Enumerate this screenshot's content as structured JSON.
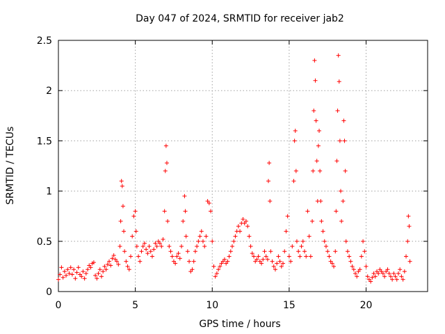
{
  "chart_data": {
    "type": "scatter",
    "title": "Day 047 of 2024, SRMTID for receiver jab2",
    "xlabel": "GPS time / hours",
    "ylabel": "SRMTID / TECUs",
    "xlim": [
      0,
      24
    ],
    "ylim": [
      0,
      2.5
    ],
    "xticks": [
      0,
      5,
      10,
      15,
      20
    ],
    "xtick_labels": [
      "0",
      "5",
      "10",
      "15",
      "20"
    ],
    "yticks": [
      0,
      0.5,
      1,
      1.5,
      2,
      2.5
    ],
    "ytick_labels": [
      "0",
      "0.5",
      "1",
      "1.5",
      "2",
      "2.5"
    ],
    "grid": true,
    "marker": "+",
    "color": "#ff0000",
    "series": [
      {
        "name": "SRMTID",
        "points": [
          [
            0.0,
            0.12
          ],
          [
            0.1,
            0.17
          ],
          [
            0.2,
            0.24
          ],
          [
            0.3,
            0.14
          ],
          [
            0.4,
            0.2
          ],
          [
            0.5,
            0.16
          ],
          [
            0.6,
            0.22
          ],
          [
            0.7,
            0.18
          ],
          [
            0.8,
            0.24
          ],
          [
            0.9,
            0.17
          ],
          [
            1.0,
            0.22
          ],
          [
            1.1,
            0.13
          ],
          [
            1.2,
            0.19
          ],
          [
            1.3,
            0.24
          ],
          [
            1.4,
            0.17
          ],
          [
            1.5,
            0.15
          ],
          [
            1.6,
            0.2
          ],
          [
            1.7,
            0.13
          ],
          [
            1.8,
            0.18
          ],
          [
            1.9,
            0.22
          ],
          [
            2.0,
            0.26
          ],
          [
            2.1,
            0.24
          ],
          [
            2.2,
            0.28
          ],
          [
            2.3,
            0.29
          ],
          [
            2.4,
            0.16
          ],
          [
            2.5,
            0.13
          ],
          [
            2.6,
            0.18
          ],
          [
            2.7,
            0.22
          ],
          [
            2.8,
            0.15
          ],
          [
            2.9,
            0.2
          ],
          [
            3.0,
            0.25
          ],
          [
            3.1,
            0.22
          ],
          [
            3.2,
            0.27
          ],
          [
            3.3,
            0.3
          ],
          [
            3.4,
            0.26
          ],
          [
            3.5,
            0.33
          ],
          [
            3.6,
            0.36
          ],
          [
            3.7,
            0.32
          ],
          [
            3.8,
            0.3
          ],
          [
            3.9,
            0.27
          ],
          [
            4.0,
            0.45
          ],
          [
            4.05,
            0.7
          ],
          [
            4.1,
            1.1
          ],
          [
            4.15,
            1.05
          ],
          [
            4.2,
            0.85
          ],
          [
            4.25,
            0.6
          ],
          [
            4.3,
            0.4
          ],
          [
            4.4,
            0.3
          ],
          [
            4.5,
            0.25
          ],
          [
            4.6,
            0.22
          ],
          [
            4.7,
            0.35
          ],
          [
            4.8,
            0.55
          ],
          [
            4.9,
            0.75
          ],
          [
            5.0,
            0.8
          ],
          [
            5.05,
            0.6
          ],
          [
            5.1,
            0.45
          ],
          [
            5.2,
            0.35
          ],
          [
            5.3,
            0.3
          ],
          [
            5.4,
            0.4
          ],
          [
            5.5,
            0.45
          ],
          [
            5.6,
            0.48
          ],
          [
            5.7,
            0.42
          ],
          [
            5.8,
            0.38
          ],
          [
            5.9,
            0.45
          ],
          [
            6.0,
            0.4
          ],
          [
            6.1,
            0.35
          ],
          [
            6.2,
            0.42
          ],
          [
            6.3,
            0.48
          ],
          [
            6.4,
            0.45
          ],
          [
            6.5,
            0.5
          ],
          [
            6.6,
            0.48
          ],
          [
            6.7,
            0.45
          ],
          [
            6.8,
            0.52
          ],
          [
            6.9,
            0.8
          ],
          [
            6.95,
            1.2
          ],
          [
            7.0,
            1.45
          ],
          [
            7.05,
            1.28
          ],
          [
            7.1,
            0.7
          ],
          [
            7.2,
            0.45
          ],
          [
            7.3,
            0.4
          ],
          [
            7.4,
            0.35
          ],
          [
            7.5,
            0.3
          ],
          [
            7.6,
            0.28
          ],
          [
            7.7,
            0.35
          ],
          [
            7.8,
            0.38
          ],
          [
            7.9,
            0.33
          ],
          [
            8.0,
            0.45
          ],
          [
            8.1,
            0.7
          ],
          [
            8.2,
            0.95
          ],
          [
            8.25,
            0.8
          ],
          [
            8.3,
            0.55
          ],
          [
            8.4,
            0.4
          ],
          [
            8.5,
            0.3
          ],
          [
            8.6,
            0.2
          ],
          [
            8.7,
            0.22
          ],
          [
            8.8,
            0.3
          ],
          [
            8.9,
            0.4
          ],
          [
            9.0,
            0.45
          ],
          [
            9.1,
            0.5
          ],
          [
            9.2,
            0.55
          ],
          [
            9.3,
            0.6
          ],
          [
            9.4,
            0.5
          ],
          [
            9.5,
            0.45
          ],
          [
            9.6,
            0.55
          ],
          [
            9.7,
            0.9
          ],
          [
            9.8,
            0.88
          ],
          [
            9.9,
            0.8
          ],
          [
            10.0,
            0.5
          ],
          [
            10.1,
            0.25
          ],
          [
            10.2,
            0.15
          ],
          [
            10.3,
            0.18
          ],
          [
            10.4,
            0.22
          ],
          [
            10.5,
            0.25
          ],
          [
            10.6,
            0.28
          ],
          [
            10.7,
            0.3
          ],
          [
            10.8,
            0.32
          ],
          [
            10.9,
            0.28
          ],
          [
            11.0,
            0.3
          ],
          [
            11.1,
            0.35
          ],
          [
            11.2,
            0.4
          ],
          [
            11.3,
            0.45
          ],
          [
            11.4,
            0.5
          ],
          [
            11.5,
            0.55
          ],
          [
            11.6,
            0.6
          ],
          [
            11.7,
            0.65
          ],
          [
            11.8,
            0.6
          ],
          [
            11.9,
            0.68
          ],
          [
            12.0,
            0.72
          ],
          [
            12.1,
            0.68
          ],
          [
            12.2,
            0.7
          ],
          [
            12.3,
            0.65
          ],
          [
            12.4,
            0.55
          ],
          [
            12.5,
            0.45
          ],
          [
            12.6,
            0.38
          ],
          [
            12.7,
            0.35
          ],
          [
            12.8,
            0.3
          ],
          [
            12.9,
            0.32
          ],
          [
            13.0,
            0.35
          ],
          [
            13.1,
            0.3
          ],
          [
            13.2,
            0.28
          ],
          [
            13.3,
            0.32
          ],
          [
            13.4,
            0.4
          ],
          [
            13.5,
            0.35
          ],
          [
            13.6,
            0.32
          ],
          [
            13.65,
            1.1
          ],
          [
            13.7,
            1.28
          ],
          [
            13.75,
            0.9
          ],
          [
            13.8,
            0.4
          ],
          [
            13.9,
            0.3
          ],
          [
            14.0,
            0.25
          ],
          [
            14.1,
            0.22
          ],
          [
            14.2,
            0.28
          ],
          [
            14.3,
            0.35
          ],
          [
            14.4,
            0.3
          ],
          [
            14.5,
            0.25
          ],
          [
            14.6,
            0.28
          ],
          [
            14.7,
            0.4
          ],
          [
            14.8,
            0.6
          ],
          [
            14.9,
            0.75
          ],
          [
            15.0,
            0.35
          ],
          [
            15.1,
            0.3
          ],
          [
            15.2,
            0.45
          ],
          [
            15.3,
            1.1
          ],
          [
            15.35,
            1.5
          ],
          [
            15.4,
            1.6
          ],
          [
            15.45,
            1.2
          ],
          [
            15.5,
            0.5
          ],
          [
            15.6,
            0.4
          ],
          [
            15.7,
            0.35
          ],
          [
            15.8,
            0.45
          ],
          [
            15.9,
            0.5
          ],
          [
            16.0,
            0.4
          ],
          [
            16.1,
            0.35
          ],
          [
            16.2,
            0.8
          ],
          [
            16.3,
            0.55
          ],
          [
            16.4,
            0.35
          ],
          [
            16.5,
            0.7
          ],
          [
            16.55,
            1.2
          ],
          [
            16.6,
            1.8
          ],
          [
            16.65,
            2.3
          ],
          [
            16.7,
            2.1
          ],
          [
            16.75,
            1.7
          ],
          [
            16.8,
            1.3
          ],
          [
            16.85,
            0.9
          ],
          [
            16.9,
            1.45
          ],
          [
            16.95,
            1.6
          ],
          [
            17.0,
            1.2
          ],
          [
            17.05,
            0.9
          ],
          [
            17.1,
            0.7
          ],
          [
            17.2,
            0.6
          ],
          [
            17.3,
            0.5
          ],
          [
            17.4,
            0.45
          ],
          [
            17.5,
            0.4
          ],
          [
            17.6,
            0.35
          ],
          [
            17.7,
            0.3
          ],
          [
            17.8,
            0.28
          ],
          [
            17.9,
            0.25
          ],
          [
            18.0,
            0.4
          ],
          [
            18.05,
            0.8
          ],
          [
            18.1,
            1.3
          ],
          [
            18.15,
            1.8
          ],
          [
            18.2,
            2.35
          ],
          [
            18.25,
            2.09
          ],
          [
            18.3,
            1.5
          ],
          [
            18.35,
            1.0
          ],
          [
            18.4,
            0.7
          ],
          [
            18.5,
            0.9
          ],
          [
            18.55,
            1.7
          ],
          [
            18.6,
            1.5
          ],
          [
            18.65,
            1.2
          ],
          [
            18.7,
            0.5
          ],
          [
            18.8,
            0.4
          ],
          [
            18.9,
            0.35
          ],
          [
            19.0,
            0.3
          ],
          [
            19.1,
            0.25
          ],
          [
            19.2,
            0.22
          ],
          [
            19.3,
            0.18
          ],
          [
            19.4,
            0.15
          ],
          [
            19.5,
            0.2
          ],
          [
            19.6,
            0.22
          ],
          [
            19.7,
            0.35
          ],
          [
            19.8,
            0.5
          ],
          [
            19.9,
            0.4
          ],
          [
            20.0,
            0.25
          ],
          [
            20.1,
            0.15
          ],
          [
            20.2,
            0.12
          ],
          [
            20.3,
            0.1
          ],
          [
            20.4,
            0.14
          ],
          [
            20.5,
            0.18
          ],
          [
            20.6,
            0.15
          ],
          [
            20.7,
            0.2
          ],
          [
            20.8,
            0.18
          ],
          [
            20.9,
            0.22
          ],
          [
            21.0,
            0.2
          ],
          [
            21.1,
            0.18
          ],
          [
            21.2,
            0.15
          ],
          [
            21.3,
            0.2
          ],
          [
            21.4,
            0.22
          ],
          [
            21.5,
            0.18
          ],
          [
            21.6,
            0.15
          ],
          [
            21.7,
            0.12
          ],
          [
            21.8,
            0.18
          ],
          [
            21.9,
            0.15
          ],
          [
            22.0,
            0.12
          ],
          [
            22.1,
            0.18
          ],
          [
            22.2,
            0.22
          ],
          [
            22.3,
            0.15
          ],
          [
            22.4,
            0.12
          ],
          [
            22.5,
            0.2
          ],
          [
            22.6,
            0.35
          ],
          [
            22.7,
            0.5
          ],
          [
            22.75,
            0.75
          ],
          [
            22.8,
            0.65
          ],
          [
            22.85,
            0.3
          ]
        ]
      }
    ]
  }
}
